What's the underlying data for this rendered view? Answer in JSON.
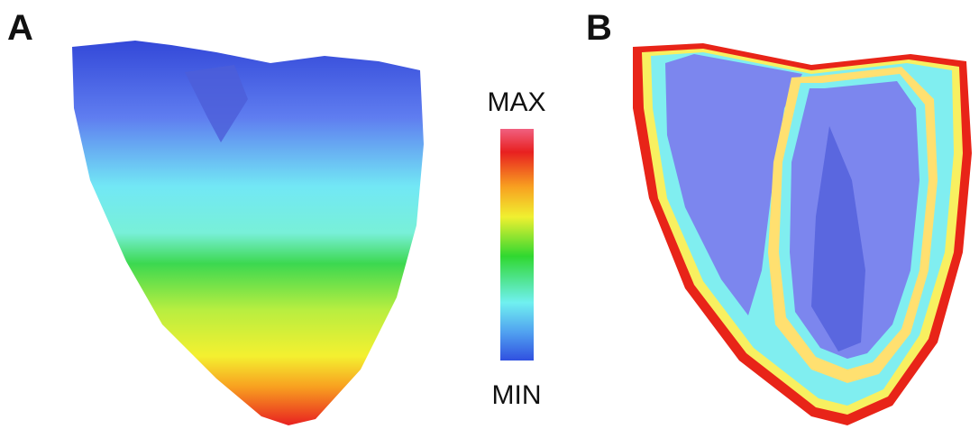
{
  "panels": [
    {
      "label": "A"
    },
    {
      "label": "B"
    }
  ],
  "colorbar": {
    "max_label": "MAX",
    "min_label": "MIN"
  }
}
